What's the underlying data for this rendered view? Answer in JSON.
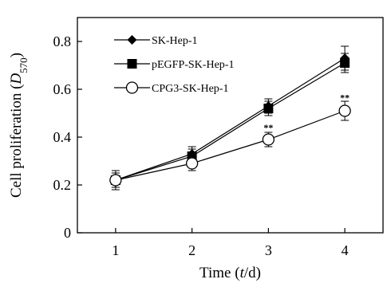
{
  "chart_data": {
    "type": "line",
    "title": "",
    "xlabel": {
      "pre": "Time (",
      "var": "t",
      "post": "/d)"
    },
    "ylabel": {
      "pre": "Cell proliferation (",
      "var": "D",
      "sub": "570",
      "post": ")"
    },
    "x": [
      1,
      2,
      3,
      4
    ],
    "xticks": [
      "1",
      "2",
      "3",
      "4"
    ],
    "yticks": [
      "0",
      "0.2",
      "0.4",
      "0.6",
      "0.8"
    ],
    "xlim": [
      0.5,
      4.5
    ],
    "ylim": [
      0,
      0.9
    ],
    "grid": false,
    "legend_position": "top-left",
    "series": [
      {
        "name": "SK-Hep-1",
        "marker": "diamond-filled",
        "values": [
          0.22,
          0.33,
          0.53,
          0.73
        ],
        "errors": [
          0.04,
          0.03,
          0.03,
          0.05
        ]
      },
      {
        "name": "pEGFP-SK-Hep-1",
        "marker": "square-filled",
        "values": [
          0.22,
          0.32,
          0.52,
          0.71
        ],
        "errors": [
          0.03,
          0.03,
          0.03,
          0.04
        ]
      },
      {
        "name": "CPG3-SK-Hep-1",
        "marker": "circle-open",
        "values": [
          0.22,
          0.29,
          0.39,
          0.51
        ],
        "errors": [
          0.03,
          0.03,
          0.03,
          0.04
        ]
      }
    ],
    "annotations": [
      {
        "x": 3,
        "y": 0.44,
        "text": "**"
      },
      {
        "x": 4,
        "y": 0.565,
        "text": "**"
      }
    ]
  }
}
